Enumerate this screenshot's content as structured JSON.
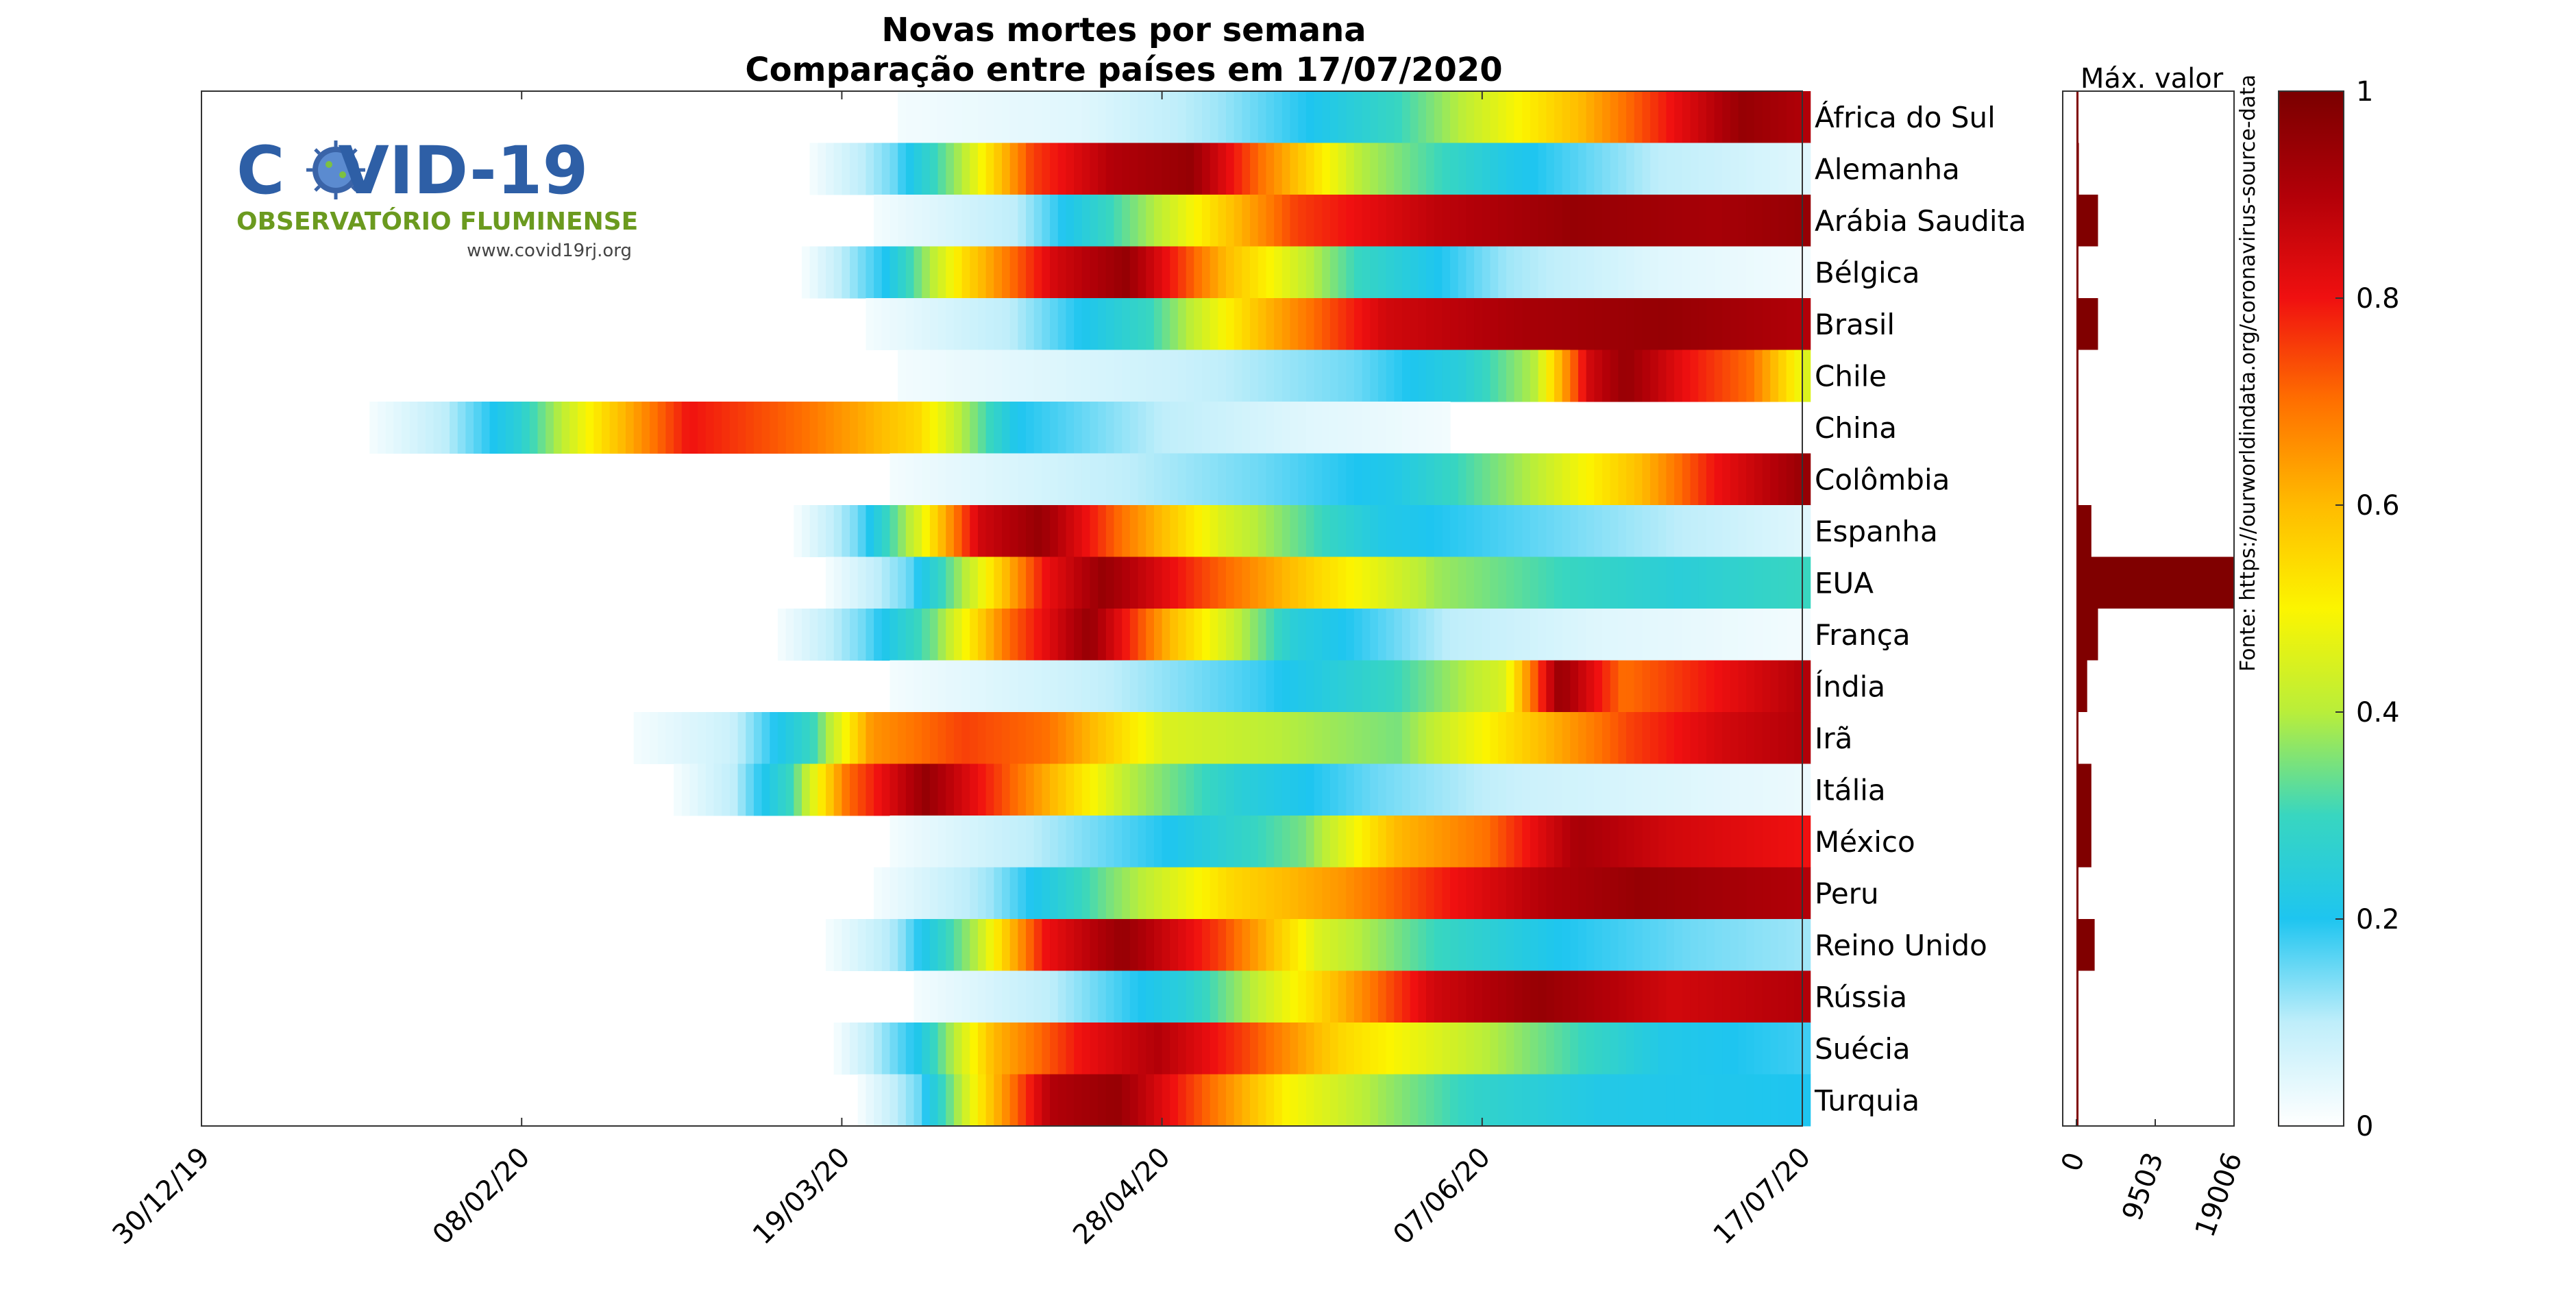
{
  "chart_data": {
    "type": "heatmap",
    "title": "Novas mortes por semana",
    "subtitle": "Comparação entre países em 17/07/2020",
    "x_ticks": [
      "30/12/19",
      "08/02/20",
      "19/03/20",
      "28/04/20",
      "07/06/20",
      "17/07/20"
    ],
    "x_range": [
      "30/12/19",
      "17/07/20"
    ],
    "countries": [
      "África do Sul",
      "Alemanha",
      "Arábia Saudita",
      "Bélgica",
      "Brasil",
      "Chile",
      "China",
      "Colômbia",
      "Espanha",
      "EUA",
      "França",
      "Índia",
      "Irã",
      "Itália",
      "México",
      "Peru",
      "Reino Unido",
      "Rússia",
      "Suécia",
      "Turquia"
    ],
    "series_start": [
      "26/03/20",
      "15/03/20",
      "23/03/20",
      "14/03/20",
      "22/03/20",
      "26/03/20",
      "20/01/20",
      "25/03/20",
      "13/03/20",
      "17/03/20",
      "11/03/20",
      "25/03/20",
      "22/02/20",
      "27/02/20",
      "25/03/20",
      "23/03/20",
      "17/03/20",
      "28/03/20",
      "18/03/20",
      "21/03/20"
    ],
    "normalized_profiles": [
      [
        [
          0,
          0.02
        ],
        [
          0.2,
          0.05
        ],
        [
          0.35,
          0.12
        ],
        [
          0.45,
          0.2
        ],
        [
          0.55,
          0.3
        ],
        [
          0.65,
          0.45
        ],
        [
          0.75,
          0.6
        ],
        [
          0.85,
          0.8
        ],
        [
          0.93,
          0.95
        ],
        [
          1,
          0.9
        ]
      ],
      [
        [
          0,
          0.02
        ],
        [
          0.08,
          0.15
        ],
        [
          0.15,
          0.4
        ],
        [
          0.22,
          0.75
        ],
        [
          0.3,
          0.9
        ],
        [
          0.38,
          0.95
        ],
        [
          0.45,
          0.7
        ],
        [
          0.55,
          0.4
        ],
        [
          0.7,
          0.22
        ],
        [
          0.85,
          0.1
        ],
        [
          1,
          0.05
        ]
      ],
      [
        [
          0,
          0.02
        ],
        [
          0.15,
          0.1
        ],
        [
          0.3,
          0.4
        ],
        [
          0.45,
          0.75
        ],
        [
          0.6,
          0.88
        ],
        [
          0.75,
          0.95
        ],
        [
          0.9,
          0.92
        ],
        [
          1,
          0.95
        ]
      ],
      [
        [
          0,
          0.02
        ],
        [
          0.08,
          0.2
        ],
        [
          0.16,
          0.55
        ],
        [
          0.25,
          0.85
        ],
        [
          0.32,
          0.95
        ],
        [
          0.42,
          0.6
        ],
        [
          0.55,
          0.3
        ],
        [
          0.7,
          0.12
        ],
        [
          0.85,
          0.05
        ],
        [
          1,
          0.02
        ]
      ],
      [
        [
          0,
          0.02
        ],
        [
          0.15,
          0.1
        ],
        [
          0.3,
          0.3
        ],
        [
          0.42,
          0.6
        ],
        [
          0.55,
          0.85
        ],
        [
          0.7,
          0.92
        ],
        [
          0.85,
          0.95
        ],
        [
          1,
          0.9
        ]
      ],
      [
        [
          0,
          0.02
        ],
        [
          0.3,
          0.08
        ],
        [
          0.5,
          0.15
        ],
        [
          0.62,
          0.25
        ],
        [
          0.7,
          0.4
        ],
        [
          0.76,
          0.85
        ],
        [
          0.8,
          0.95
        ],
        [
          0.87,
          0.8
        ],
        [
          0.94,
          0.7
        ],
        [
          1,
          0.45
        ]
      ],
      [
        [
          0,
          0.02
        ],
        [
          0.05,
          0.1
        ],
        [
          0.1,
          0.25
        ],
        [
          0.15,
          0.5
        ],
        [
          0.22,
          0.8
        ],
        [
          0.3,
          0.7
        ],
        [
          0.38,
          0.55
        ],
        [
          0.45,
          0.2
        ],
        [
          0.55,
          0.1
        ],
        [
          0.65,
          0.05
        ],
        [
          0.75,
          0.02
        ]
      ],
      [
        [
          0,
          0.02
        ],
        [
          0.2,
          0.08
        ],
        [
          0.4,
          0.15
        ],
        [
          0.55,
          0.22
        ],
        [
          0.7,
          0.4
        ],
        [
          0.82,
          0.6
        ],
        [
          0.9,
          0.8
        ],
        [
          1,
          0.95
        ]
      ],
      [
        [
          0,
          0.02
        ],
        [
          0.06,
          0.15
        ],
        [
          0.12,
          0.45
        ],
        [
          0.18,
          0.85
        ],
        [
          0.24,
          0.95
        ],
        [
          0.32,
          0.7
        ],
        [
          0.42,
          0.45
        ],
        [
          0.52,
          0.3
        ],
        [
          0.58,
          0.22
        ],
        [
          1,
          0.05
        ]
      ],
      [
        [
          0,
          0.02
        ],
        [
          0.08,
          0.15
        ],
        [
          0.15,
          0.45
        ],
        [
          0.22,
          0.8
        ],
        [
          0.28,
          0.95
        ],
        [
          0.38,
          0.75
        ],
        [
          0.5,
          0.55
        ],
        [
          0.62,
          0.38
        ],
        [
          0.75,
          0.3
        ],
        [
          0.87,
          0.25
        ],
        [
          1,
          0.3
        ]
      ],
      [
        [
          0,
          0.02
        ],
        [
          0.08,
          0.15
        ],
        [
          0.15,
          0.35
        ],
        [
          0.22,
          0.7
        ],
        [
          0.3,
          0.95
        ],
        [
          0.38,
          0.6
        ],
        [
          0.5,
          0.25
        ],
        [
          0.65,
          0.1
        ],
        [
          0.8,
          0.05
        ],
        [
          1,
          0.02
        ]
      ],
      [
        [
          0,
          0.02
        ],
        [
          0.2,
          0.08
        ],
        [
          0.4,
          0.18
        ],
        [
          0.55,
          0.3
        ],
        [
          0.67,
          0.45
        ],
        [
          0.73,
          0.95
        ],
        [
          0.8,
          0.7
        ],
        [
          0.9,
          0.8
        ],
        [
          1,
          0.9
        ]
      ],
      [
        [
          0,
          0.02
        ],
        [
          0.08,
          0.08
        ],
        [
          0.15,
          0.3
        ],
        [
          0.2,
          0.65
        ],
        [
          0.28,
          0.75
        ],
        [
          0.35,
          0.7
        ],
        [
          0.45,
          0.45
        ],
        [
          0.55,
          0.4
        ],
        [
          0.65,
          0.35
        ],
        [
          0.75,
          0.55
        ],
        [
          0.85,
          0.75
        ],
        [
          0.93,
          0.85
        ],
        [
          1,
          0.9
        ]
      ],
      [
        [
          0,
          0.02
        ],
        [
          0.05,
          0.1
        ],
        [
          0.1,
          0.3
        ],
        [
          0.15,
          0.7
        ],
        [
          0.22,
          0.95
        ],
        [
          0.3,
          0.7
        ],
        [
          0.4,
          0.4
        ],
        [
          0.5,
          0.25
        ],
        [
          0.62,
          0.15
        ],
        [
          0.75,
          0.08
        ],
        [
          1,
          0.03
        ]
      ],
      [
        [
          0,
          0.02
        ],
        [
          0.15,
          0.1
        ],
        [
          0.3,
          0.2
        ],
        [
          0.45,
          0.35
        ],
        [
          0.55,
          0.6
        ],
        [
          0.65,
          0.7
        ],
        [
          0.75,
          0.92
        ],
        [
          0.85,
          0.85
        ],
        [
          1,
          0.8
        ]
      ],
      [
        [
          0,
          0.02
        ],
        [
          0.12,
          0.12
        ],
        [
          0.25,
          0.35
        ],
        [
          0.38,
          0.55
        ],
        [
          0.5,
          0.65
        ],
        [
          0.62,
          0.8
        ],
        [
          0.72,
          0.9
        ],
        [
          0.82,
          0.95
        ],
        [
          1,
          0.9
        ]
      ],
      [
        [
          0,
          0.02
        ],
        [
          0.07,
          0.12
        ],
        [
          0.15,
          0.4
        ],
        [
          0.22,
          0.8
        ],
        [
          0.3,
          0.95
        ],
        [
          0.4,
          0.75
        ],
        [
          0.5,
          0.45
        ],
        [
          0.62,
          0.3
        ],
        [
          0.75,
          0.2
        ],
        [
          0.88,
          0.15
        ],
        [
          1,
          0.12
        ]
      ],
      [
        [
          0,
          0.02
        ],
        [
          0.15,
          0.1
        ],
        [
          0.3,
          0.25
        ],
        [
          0.45,
          0.55
        ],
        [
          0.58,
          0.85
        ],
        [
          0.7,
          0.95
        ],
        [
          0.85,
          0.85
        ],
        [
          1,
          0.9
        ]
      ],
      [
        [
          0,
          0.02
        ],
        [
          0.08,
          0.2
        ],
        [
          0.16,
          0.6
        ],
        [
          0.25,
          0.8
        ],
        [
          0.33,
          0.9
        ],
        [
          0.42,
          0.75
        ],
        [
          0.52,
          0.55
        ],
        [
          0.62,
          0.45
        ],
        [
          0.72,
          0.35
        ],
        [
          0.85,
          0.22
        ],
        [
          1,
          0.18
        ]
      ],
      [
        [
          0,
          0.02
        ],
        [
          0.06,
          0.15
        ],
        [
          0.13,
          0.55
        ],
        [
          0.2,
          0.9
        ],
        [
          0.27,
          0.95
        ],
        [
          0.35,
          0.75
        ],
        [
          0.45,
          0.5
        ],
        [
          0.55,
          0.38
        ],
        [
          0.65,
          0.28
        ],
        [
          0.78,
          0.22
        ],
        [
          1,
          0.2
        ]
      ]
    ],
    "max_values": [
      50,
      300,
      2600,
      200,
      2600,
      180,
      20,
      30,
      1800,
      19006,
      2600,
      1300,
      60,
      1800,
      1800,
      150,
      2200,
      30,
      40,
      50
    ],
    "max_axis_ticks": [
      0,
      9503,
      19006
    ],
    "max_axis_label": "Máx. valor",
    "colorbar_ticks": [
      0,
      0.2,
      0.4,
      0.6,
      0.8,
      1
    ],
    "colorbar_range": [
      0,
      1
    ],
    "colormap": [
      "#ffffff",
      "#bfeefa",
      "#1ec5f0",
      "#38d6c0",
      "#b9ee3a",
      "#fcf500",
      "#ffbb00",
      "#ff7000",
      "#f01010",
      "#b20008",
      "#7a0000"
    ],
    "source": "Fonte: https://ourworldindata.org/coronavirus-source-data"
  },
  "logo": {
    "title": "COVID-19",
    "subtitle": "OBSERVATÓRIO FLUMINENSE",
    "url": "www.covid19rj.org"
  }
}
